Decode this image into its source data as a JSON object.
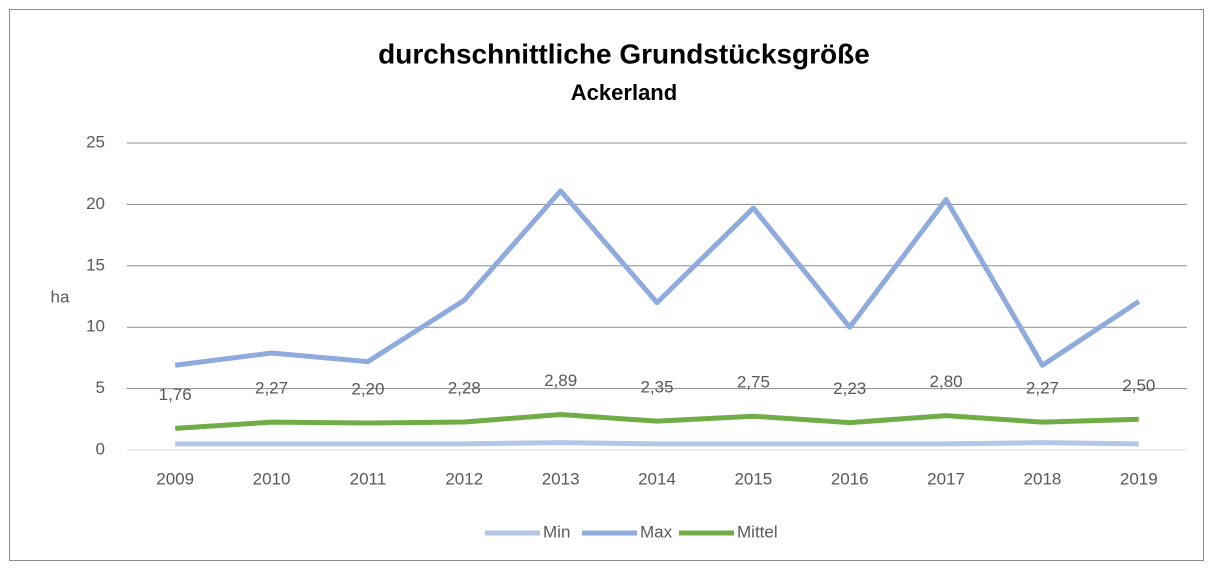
{
  "chart_data": {
    "type": "line",
    "title": "durchschnittliche Grundstücksgröße",
    "subtitle": "Ackerland",
    "y_label": "ha",
    "categories": [
      "2009",
      "2010",
      "2011",
      "2012",
      "2013",
      "2014",
      "2015",
      "2016",
      "2017",
      "2018",
      "2019"
    ],
    "series": [
      {
        "name": "Min",
        "color": "#b4c7e7",
        "values": [
          0.5,
          0.5,
          0.5,
          0.5,
          0.6,
          0.5,
          0.5,
          0.5,
          0.5,
          0.6,
          0.5
        ]
      },
      {
        "name": "Max",
        "color": "#8faadc",
        "values": [
          6.9,
          7.9,
          7.2,
          12.2,
          21.1,
          12.0,
          19.7,
          10.0,
          20.4,
          6.9,
          12.1
        ]
      },
      {
        "name": "Mittel",
        "color": "#70ad47",
        "values": [
          1.76,
          2.27,
          2.2,
          2.28,
          2.89,
          2.35,
          2.75,
          2.23,
          2.8,
          2.27,
          2.5
        ],
        "value_labels": [
          "1,76",
          "2,27",
          "2,20",
          "2,28",
          "2,89",
          "2,35",
          "2,75",
          "2,23",
          "2,80",
          "2,27",
          "2,50"
        ]
      }
    ],
    "ylim": [
      0,
      25
    ],
    "yticks": [
      0,
      5,
      10,
      15,
      20,
      25
    ],
    "grid": true,
    "legend": "bottom"
  }
}
